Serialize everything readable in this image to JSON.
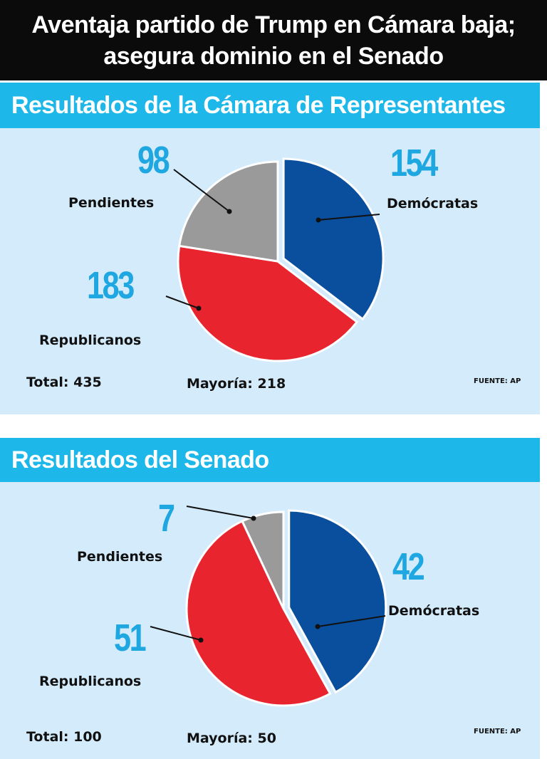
{
  "header": {
    "line1": "Aventaja partido de Trump en Cámara baja;",
    "line2": "asegura dominio en el Senado"
  },
  "colors": {
    "democratas": "#0a4f9e",
    "republicanos": "#e8242f",
    "pendientes": "#9a9a9a",
    "number": "#1ea7e0",
    "title_bar": "#1db7ea",
    "panel_bg": "#d3ebfb"
  },
  "chart_data": [
    {
      "type": "pie",
      "title": "Resultados de la Cámara de Representantes",
      "series": [
        {
          "name": "Demócratas",
          "value": 154,
          "label": "154"
        },
        {
          "name": "Republicanos",
          "value": 183,
          "label": "183"
        },
        {
          "name": "Pendientes",
          "value": 98,
          "label": "98"
        }
      ],
      "total": "Total: 435",
      "majority": "Mayoría: 218",
      "source": "FUENTE: AP"
    },
    {
      "type": "pie",
      "title": "Resultados del Senado",
      "series": [
        {
          "name": "Demócratas",
          "value": 42,
          "label": "42"
        },
        {
          "name": "Republicanos",
          "value": 51,
          "label": "51"
        },
        {
          "name": "Pendientes",
          "value": 7,
          "label": "7"
        }
      ],
      "total": "Total: 100",
      "majority": "Mayoría: 50",
      "source": "FUENTE: AP"
    }
  ]
}
